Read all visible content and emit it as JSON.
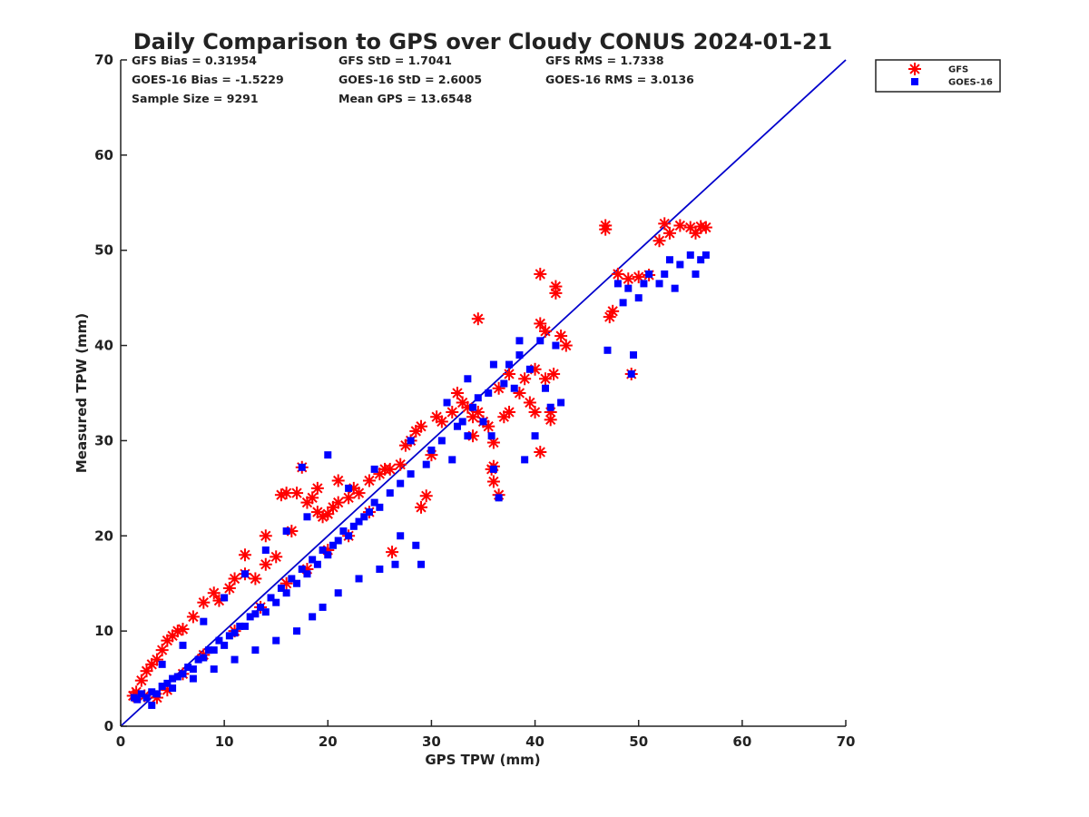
{
  "chart_data": {
    "type": "scatter",
    "title": "Daily Comparison to GPS over Cloudy CONUS 2024-01-21",
    "xlabel": "GPS TPW (mm)",
    "ylabel": "Measured TPW (mm)",
    "xlim": [
      0,
      70
    ],
    "ylim": [
      0,
      70
    ],
    "xticks": [
      0,
      10,
      20,
      30,
      40,
      50,
      60,
      70
    ],
    "yticks": [
      0,
      10,
      20,
      30,
      40,
      50,
      60,
      70
    ],
    "grid": false,
    "legend_position": "outside-top-right",
    "reference_line": {
      "name": "1:1 line",
      "color": "#0000cc",
      "from": [
        0,
        0
      ],
      "to": [
        70,
        70
      ]
    },
    "stats": [
      [
        "GFS Bias = 0.31954",
        "GFS StD = 1.7041",
        "GFS RMS = 1.7338"
      ],
      [
        "GOES-16 Bias = -1.5229",
        "GOES-16 StD = 2.6005",
        "GOES-16 RMS = 3.0136"
      ],
      [
        "Sample Size = 9291",
        "Mean GPS = 13.6548"
      ]
    ],
    "series": [
      {
        "name": "GFS",
        "marker": "asterisk",
        "color": "#ff0000",
        "points": [
          [
            1.2,
            3.2
          ],
          [
            1.5,
            3.6
          ],
          [
            2.0,
            4.8
          ],
          [
            2.3,
            3.2
          ],
          [
            2.5,
            5.8
          ],
          [
            3.0,
            6.5
          ],
          [
            3.5,
            7.0
          ],
          [
            4.0,
            8.0
          ],
          [
            4.5,
            9.0
          ],
          [
            5.0,
            9.5
          ],
          [
            5.5,
            10.0
          ],
          [
            6.0,
            10.2
          ],
          [
            7.0,
            11.5
          ],
          [
            8.0,
            13.0
          ],
          [
            9.0,
            14.0
          ],
          [
            9.5,
            13.2
          ],
          [
            10.5,
            14.5
          ],
          [
            11.0,
            15.5
          ],
          [
            12.0,
            16.0
          ],
          [
            13.0,
            15.5
          ],
          [
            14.0,
            17.0
          ],
          [
            15.0,
            17.8
          ],
          [
            15.5,
            24.3
          ],
          [
            16.0,
            24.5
          ],
          [
            17.0,
            24.5
          ],
          [
            17.5,
            27.2
          ],
          [
            18.0,
            23.5
          ],
          [
            18.5,
            24.0
          ],
          [
            19.0,
            22.5
          ],
          [
            19.5,
            22.0
          ],
          [
            20.0,
            22.3
          ],
          [
            20.5,
            23.0
          ],
          [
            21.0,
            23.5
          ],
          [
            22.0,
            24.0
          ],
          [
            22.5,
            25.0
          ],
          [
            23.0,
            24.5
          ],
          [
            24.0,
            25.8
          ],
          [
            25.0,
            26.5
          ],
          [
            26.0,
            27.0
          ],
          [
            26.2,
            18.3
          ],
          [
            27.0,
            27.5
          ],
          [
            27.5,
            29.5
          ],
          [
            28.0,
            30.0
          ],
          [
            28.5,
            31.0
          ],
          [
            29.0,
            31.5
          ],
          [
            29.5,
            24.2
          ],
          [
            29.0,
            23.0
          ],
          [
            30.0,
            28.5
          ],
          [
            31.0,
            32.0
          ],
          [
            32.0,
            33.0
          ],
          [
            32.5,
            35.0
          ],
          [
            33.0,
            34.0
          ],
          [
            33.5,
            33.5
          ],
          [
            34.0,
            32.5
          ],
          [
            34.5,
            33.0
          ],
          [
            35.0,
            32.0
          ],
          [
            35.5,
            31.5
          ],
          [
            35.8,
            27.0
          ],
          [
            36.0,
            25.7
          ],
          [
            36.5,
            24.3
          ],
          [
            36.0,
            27.3
          ],
          [
            36.0,
            29.8
          ],
          [
            37.0,
            32.5
          ],
          [
            37.5,
            33.0
          ],
          [
            37.5,
            37.0
          ],
          [
            38.5,
            35.0
          ],
          [
            39.0,
            36.5
          ],
          [
            39.5,
            34.0
          ],
          [
            40.0,
            37.5
          ],
          [
            40.0,
            33.0
          ],
          [
            40.5,
            28.8
          ],
          [
            40.5,
            42.3
          ],
          [
            40.5,
            47.5
          ],
          [
            41.0,
            36.5
          ],
          [
            41.0,
            41.5
          ],
          [
            41.5,
            33.0
          ],
          [
            41.5,
            32.2
          ],
          [
            41.8,
            37.0
          ],
          [
            42.0,
            45.5
          ],
          [
            42.0,
            46.2
          ],
          [
            42.5,
            41.0
          ],
          [
            43.0,
            40.0
          ],
          [
            34.5,
            42.8
          ],
          [
            46.8,
            52.2
          ],
          [
            46.8,
            52.6
          ],
          [
            47.2,
            43.0
          ],
          [
            47.5,
            43.6
          ],
          [
            48.0,
            47.5
          ],
          [
            49.0,
            47.0
          ],
          [
            49.3,
            37.0
          ],
          [
            50.0,
            47.2
          ],
          [
            51.0,
            47.4
          ],
          [
            52.0,
            51.0
          ],
          [
            52.5,
            52.8
          ],
          [
            53.0,
            51.8
          ],
          [
            54.0,
            52.6
          ],
          [
            55.0,
            52.4
          ],
          [
            55.5,
            51.8
          ],
          [
            56.0,
            52.5
          ],
          [
            56.5,
            52.4
          ],
          [
            3.5,
            3.0
          ],
          [
            4.5,
            3.8
          ],
          [
            6.0,
            5.5
          ],
          [
            8.0,
            7.5
          ],
          [
            11.0,
            10.0
          ],
          [
            13.5,
            12.5
          ],
          [
            16.0,
            15.0
          ],
          [
            18.0,
            16.5
          ],
          [
            20.0,
            18.5
          ],
          [
            22.0,
            20.0
          ],
          [
            24.0,
            22.5
          ],
          [
            12.0,
            18.0
          ],
          [
            14.0,
            20.0
          ],
          [
            16.5,
            20.5
          ],
          [
            19.0,
            25.0
          ],
          [
            21.0,
            25.8
          ],
          [
            25.5,
            27.0
          ],
          [
            30.5,
            32.5
          ],
          [
            36.5,
            35.5
          ],
          [
            34.0,
            30.5
          ]
        ]
      },
      {
        "name": "GOES-16",
        "marker": "square",
        "color": "#0000ff",
        "points": [
          [
            1.3,
            3.0
          ],
          [
            1.6,
            2.8
          ],
          [
            2.0,
            3.4
          ],
          [
            2.5,
            3.0
          ],
          [
            3.0,
            3.6
          ],
          [
            3.5,
            3.4
          ],
          [
            4.0,
            4.2
          ],
          [
            4.5,
            4.5
          ],
          [
            5.0,
            5.0
          ],
          [
            5.5,
            5.2
          ],
          [
            6.0,
            5.5
          ],
          [
            6.5,
            6.2
          ],
          [
            7.0,
            6.0
          ],
          [
            7.5,
            7.0
          ],
          [
            8.0,
            7.2
          ],
          [
            8.5,
            8.0
          ],
          [
            9.0,
            8.0
          ],
          [
            9.5,
            9.0
          ],
          [
            10.0,
            8.5
          ],
          [
            10.5,
            9.5
          ],
          [
            11.0,
            9.8
          ],
          [
            11.5,
            10.5
          ],
          [
            12.0,
            10.5
          ],
          [
            12.5,
            11.5
          ],
          [
            13.0,
            11.8
          ],
          [
            13.5,
            12.5
          ],
          [
            14.0,
            12.0
          ],
          [
            14.5,
            13.5
          ],
          [
            15.0,
            13.0
          ],
          [
            15.5,
            14.5
          ],
          [
            16.0,
            14.0
          ],
          [
            16.5,
            15.5
          ],
          [
            17.0,
            15.0
          ],
          [
            17.5,
            16.5
          ],
          [
            18.0,
            16.0
          ],
          [
            18.5,
            17.5
          ],
          [
            19.0,
            17.0
          ],
          [
            19.5,
            18.5
          ],
          [
            20.0,
            18.0
          ],
          [
            20.5,
            19.0
          ],
          [
            21.0,
            19.5
          ],
          [
            21.5,
            20.5
          ],
          [
            22.0,
            20.0
          ],
          [
            22.5,
            21.0
          ],
          [
            23.0,
            21.5
          ],
          [
            23.5,
            22.0
          ],
          [
            24.0,
            22.5
          ],
          [
            24.5,
            23.5
          ],
          [
            25.0,
            23.0
          ],
          [
            26.0,
            24.5
          ],
          [
            26.5,
            17.0
          ],
          [
            27.0,
            25.5
          ],
          [
            28.0,
            26.5
          ],
          [
            28.5,
            19.0
          ],
          [
            29.0,
            17.0
          ],
          [
            29.5,
            27.5
          ],
          [
            30.0,
            29.0
          ],
          [
            31.0,
            30.0
          ],
          [
            32.0,
            28.0
          ],
          [
            32.5,
            31.5
          ],
          [
            33.0,
            32.0
          ],
          [
            33.5,
            30.5
          ],
          [
            34.0,
            33.5
          ],
          [
            34.5,
            34.5
          ],
          [
            35.0,
            32.0
          ],
          [
            35.5,
            35.0
          ],
          [
            35.8,
            30.5
          ],
          [
            36.0,
            27.0
          ],
          [
            36.5,
            24.0
          ],
          [
            37.0,
            36.0
          ],
          [
            37.5,
            38.0
          ],
          [
            38.0,
            35.5
          ],
          [
            38.5,
            39.0
          ],
          [
            39.0,
            28.0
          ],
          [
            39.5,
            37.5
          ],
          [
            40.0,
            30.5
          ],
          [
            40.5,
            40.5
          ],
          [
            41.0,
            35.5
          ],
          [
            41.5,
            33.5
          ],
          [
            42.0,
            40.0
          ],
          [
            42.5,
            34.0
          ],
          [
            47.0,
            39.5
          ],
          [
            48.0,
            46.5
          ],
          [
            48.5,
            44.5
          ],
          [
            49.0,
            46.0
          ],
          [
            49.3,
            37.0
          ],
          [
            49.5,
            39.0
          ],
          [
            50.0,
            45.0
          ],
          [
            50.5,
            46.5
          ],
          [
            51.0,
            47.5
          ],
          [
            52.0,
            46.5
          ],
          [
            52.5,
            47.5
          ],
          [
            53.0,
            49.0
          ],
          [
            53.5,
            46.0
          ],
          [
            54.0,
            48.5
          ],
          [
            55.0,
            49.5
          ],
          [
            55.5,
            47.5
          ],
          [
            56.0,
            49.0
          ],
          [
            56.5,
            49.5
          ],
          [
            20.0,
            28.5
          ],
          [
            17.5,
            27.2
          ],
          [
            3.0,
            2.2
          ],
          [
            5.0,
            4.0
          ],
          [
            7.0,
            5.0
          ],
          [
            9.0,
            6.0
          ],
          [
            11.0,
            7.0
          ],
          [
            13.0,
            8.0
          ],
          [
            15.0,
            9.0
          ],
          [
            17.0,
            10.0
          ],
          [
            18.5,
            11.5
          ],
          [
            19.5,
            12.5
          ],
          [
            21.0,
            14.0
          ],
          [
            23.0,
            15.5
          ],
          [
            25.0,
            16.5
          ],
          [
            27.0,
            20.0
          ],
          [
            4.0,
            6.5
          ],
          [
            6.0,
            8.5
          ],
          [
            8.0,
            11.0
          ],
          [
            10.0,
            13.5
          ],
          [
            12.0,
            16.0
          ],
          [
            14.0,
            18.5
          ],
          [
            16.0,
            20.5
          ],
          [
            18.0,
            22.0
          ],
          [
            22.0,
            25.0
          ],
          [
            24.5,
            27.0
          ],
          [
            28.0,
            30.0
          ],
          [
            31.5,
            34.0
          ],
          [
            33.5,
            36.5
          ],
          [
            36.0,
            38.0
          ],
          [
            38.5,
            40.5
          ]
        ]
      }
    ]
  }
}
